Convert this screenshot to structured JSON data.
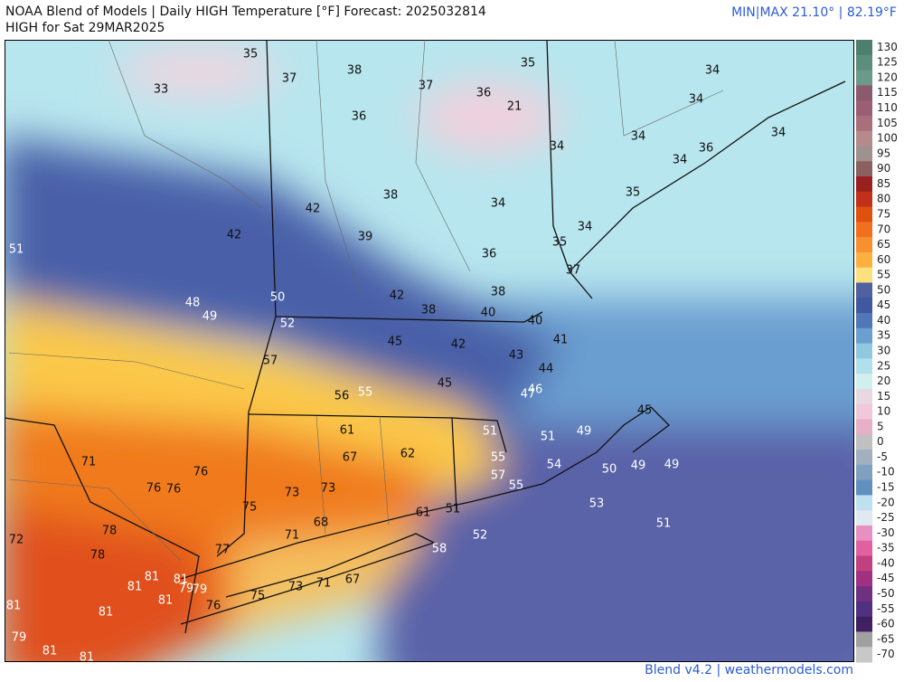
{
  "header": {
    "title": "NOAA Blend of Models | Daily HIGH Temperature [°F] Forecast: 2025032814",
    "subtitle": "HIGH for Sat 29MAR2025",
    "minmax": "MIN|MAX 21.10° | 82.19°F"
  },
  "footer": "Blend v4.2 | weathermodels.com",
  "colorbar": {
    "ticks": [
      130,
      125,
      120,
      115,
      110,
      105,
      100,
      95,
      90,
      85,
      80,
      75,
      70,
      65,
      60,
      55,
      50,
      45,
      40,
      35,
      30,
      25,
      20,
      15,
      10,
      5,
      0,
      -5,
      -10,
      -15,
      -20,
      -25,
      -30,
      -35,
      -40,
      -45,
      -50,
      -55,
      -60,
      -65,
      -70
    ],
    "colors": [
      "#4e7f6e",
      "#5b8f7c",
      "#6c9a8a",
      "#8c5a6e",
      "#9a5f72",
      "#a8707c",
      "#b48a8a",
      "#a09090",
      "#8a6060",
      "#9a2020",
      "#c0301a",
      "#e05010",
      "#f07020",
      "#f89030",
      "#fbb040",
      "#fbe080",
      "#5060a0",
      "#4058a0",
      "#5078b8",
      "#6aa0d0",
      "#90c8e0",
      "#b0e0ea",
      "#d0f0f0",
      "#e8d8e0",
      "#f0c8d8",
      "#e8b0c8",
      "#c0c0c0",
      "#a0b0c0",
      "#80a0c0",
      "#6090c0",
      "#c0e0f0",
      "#e0e8f0",
      "#e890c0",
      "#e060a0",
      "#c04080",
      "#a03080",
      "#703080",
      "#503080",
      "#402060",
      "#a0a0a0",
      "#c8c8c8"
    ]
  },
  "stations": {
    "values": [
      35,
      33,
      37,
      38,
      37,
      36,
      35,
      34,
      36,
      21,
      34,
      34,
      34,
      36,
      34,
      34,
      35,
      38,
      34,
      42,
      34,
      42,
      39,
      35,
      36,
      51,
      37,
      38,
      42,
      50,
      48,
      49,
      38,
      40,
      40,
      52,
      45,
      42,
      41,
      57,
      43,
      44,
      45,
      56,
      55,
      46,
      47,
      45,
      61,
      51,
      51,
      49,
      62,
      67,
      71,
      76,
      55,
      54,
      50,
      49,
      49,
      57,
      55,
      76,
      76,
      73,
      73,
      75,
      53,
      61,
      51,
      68,
      78,
      71,
      51,
      52,
      72,
      58,
      78,
      77,
      81,
      81,
      81,
      79,
      79,
      67,
      71,
      73,
      75,
      81,
      76,
      81,
      81,
      79,
      81,
      81
    ]
  }
}
